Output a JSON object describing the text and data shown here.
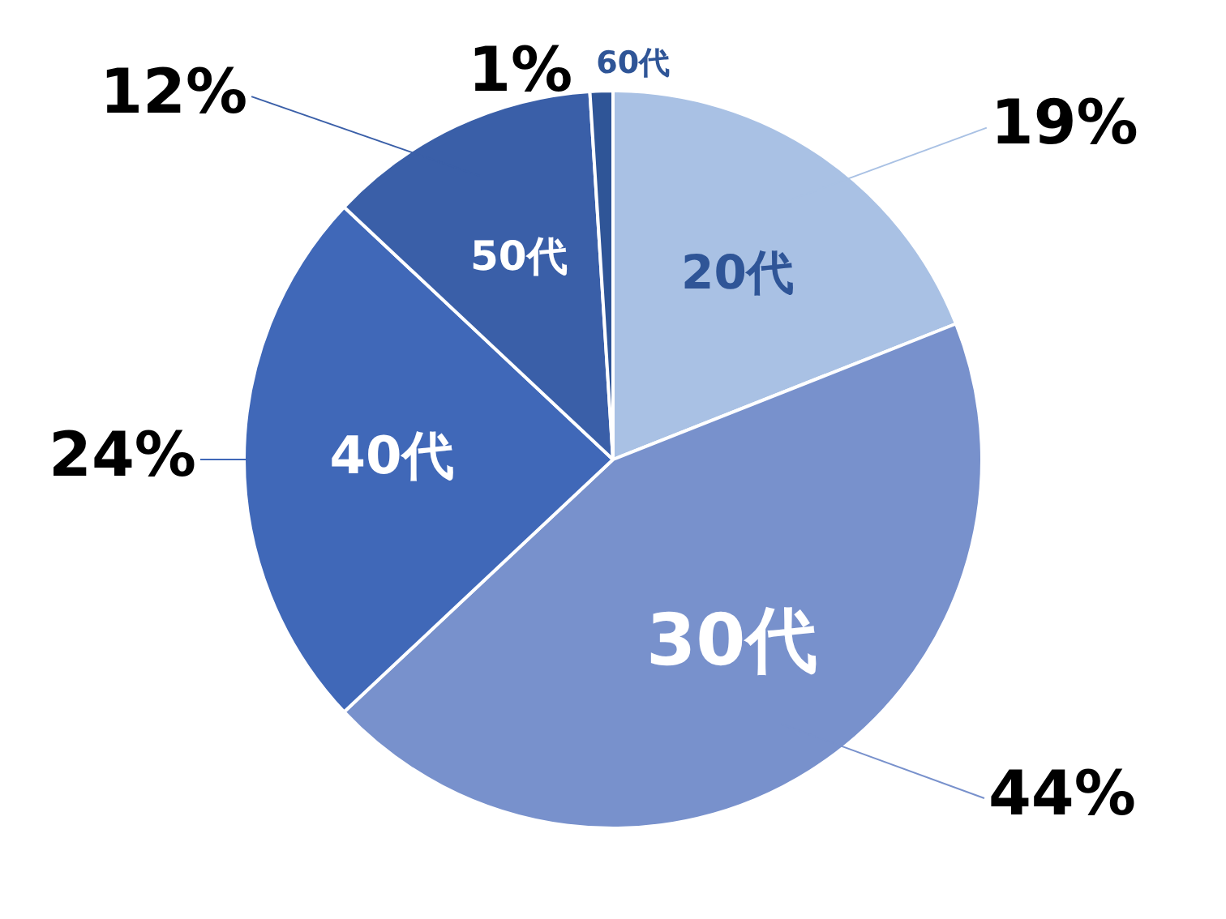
{
  "chart_data": {
    "type": "pie",
    "categories": [
      "20代",
      "30代",
      "40代",
      "50代",
      "60代"
    ],
    "values": [
      19,
      44,
      24,
      12,
      1
    ],
    "colors": [
      "#a9c1e4",
      "#7891cc",
      "#4068b8",
      "#3a5fa8",
      "#2f5597"
    ],
    "value_labels": [
      "19%",
      "44%",
      "24%",
      "12%",
      "1%"
    ]
  }
}
